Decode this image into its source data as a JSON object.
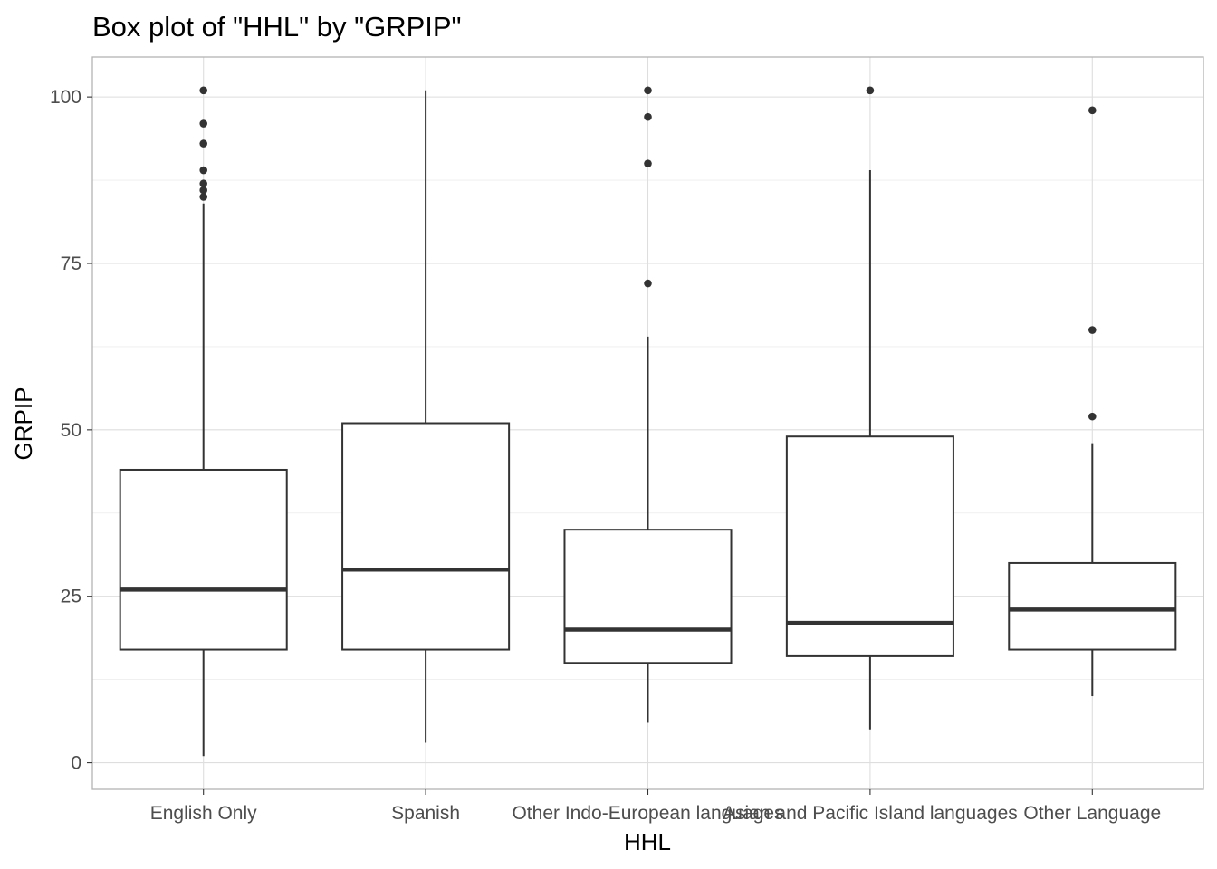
{
  "chart_data": {
    "type": "box",
    "title": "Box plot of \"HHL\" by \"GRPIP\"",
    "xlabel": "HHL",
    "ylabel": "GRPIP",
    "ylim": [
      -4,
      106
    ],
    "yticks": [
      0,
      25,
      50,
      75,
      100
    ],
    "grid": true,
    "categories": [
      "English Only",
      "Spanish",
      "Other Indo-European languages",
      "Asian and Pacific Island languages",
      "Other Language"
    ],
    "boxes": [
      {
        "category": "English Only",
        "whisker_low": 1,
        "q1": 17,
        "median": 26,
        "q3": 44,
        "whisker_high": 84,
        "outliers": [
          85,
          86,
          87,
          89,
          93,
          96,
          101
        ]
      },
      {
        "category": "Spanish",
        "whisker_low": 3,
        "q1": 17,
        "median": 29,
        "q3": 51,
        "whisker_high": 101,
        "outliers": []
      },
      {
        "category": "Other Indo-European languages",
        "whisker_low": 6,
        "q1": 15,
        "median": 20,
        "q3": 35,
        "whisker_high": 64,
        "outliers": [
          72,
          90,
          97,
          101
        ]
      },
      {
        "category": "Asian and Pacific Island languages",
        "whisker_low": 5,
        "q1": 16,
        "median": 21,
        "q3": 49,
        "whisker_high": 89,
        "outliers": [
          101
        ]
      },
      {
        "category": "Other Language",
        "whisker_low": 10,
        "q1": 17,
        "median": 23,
        "q3": 30,
        "whisker_high": 48,
        "outliers": [
          52,
          65,
          98
        ]
      }
    ],
    "colors": {
      "box_line": "#333333",
      "grid": "#dedede",
      "panel_border": "#b3b3b3",
      "tick_text": "#4d4d4d"
    }
  }
}
